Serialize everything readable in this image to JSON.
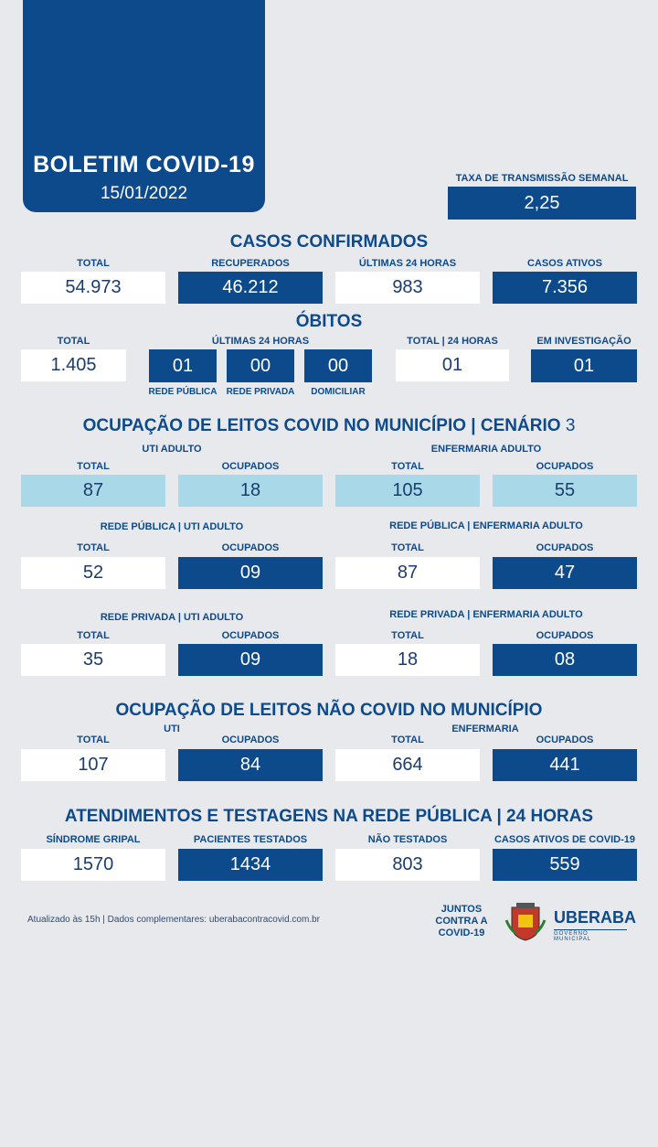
{
  "header": {
    "title": "BOLETIM COVID-19",
    "date": "15/01/2022"
  },
  "transmission": {
    "label": "TAXA DE TRANSMISSÃO SEMANAL",
    "value": "2,25"
  },
  "confirmed": {
    "title": "CASOS CONFIRMADOS",
    "total_label": "TOTAL",
    "total": "54.973",
    "recovered_label": "RECUPERADOS",
    "recovered": "46.212",
    "last24_label": "ÚLTIMAS 24 HORAS",
    "last24": "983",
    "active_label": "CASOS ATIVOS",
    "active": "7.356"
  },
  "deaths": {
    "title": "ÓBITOS",
    "total_label": "TOTAL",
    "total": "1.405",
    "last24_label": "ÚLTIMAS 24 HORAS",
    "public_value": "01",
    "public_label": "REDE PÚBLICA",
    "private_value": "00",
    "private_label": "REDE PRIVADA",
    "home_value": "00",
    "home_label": "DOMICILIAR",
    "total24_label": "TOTAL | 24 HORAS",
    "total24": "01",
    "investigation_label": "EM INVESTIGAÇÃO",
    "investigation": "01"
  },
  "covid_beds": {
    "title": "OCUPAÇÃO DE LEITOS COVID NO MUNICÍPIO | CENÁRIO",
    "scenario": "3",
    "uti_label": "UTI ADULTO",
    "ward_label": "ENFERMARIA ADULTO",
    "total_label": "TOTAL",
    "occupied_label": "OCUPADOS",
    "uti_total": "87",
    "uti_occupied": "18",
    "ward_total": "105",
    "ward_occupied": "55",
    "public_uti_label": "REDE PÚBLICA | UTI ADULTO",
    "public_ward_label": "REDE PÚBLICA | ENFERMARIA ADULTO",
    "public_uti_total": "52",
    "public_uti_occupied": "09",
    "public_ward_total": "87",
    "public_ward_occupied": "47",
    "private_uti_label": "REDE PRIVADA | UTI ADULTO",
    "private_ward_label": "REDE PRIVADA | ENFERMARIA ADULTO",
    "private_uti_total": "35",
    "private_uti_occupied": "09",
    "private_ward_total": "18",
    "private_ward_occupied": "08"
  },
  "noncovid_beds": {
    "title": "OCUPAÇÃO DE LEITOS NÃO COVID NO MUNICÍPIO",
    "uti_label": "UTI",
    "ward_label": "ENFERMARIA",
    "total_label": "TOTAL",
    "occupied_label": "OCUPADOS",
    "uti_total": "107",
    "uti_occupied": "84",
    "ward_total": "664",
    "ward_occupied": "441"
  },
  "testing": {
    "title": "ATENDIMENTOS E TESTAGENS NA REDE PÚBLICA | 24 HORAS",
    "flu_label": "SÍNDROME GRIPAL",
    "flu": "1570",
    "tested_label": "PACIENTES TESTADOS",
    "tested": "1434",
    "not_tested_label": "NÃO TESTADOS",
    "not_tested": "803",
    "active_label": "CASOS ATIVOS DE COVID-19",
    "active": "559"
  },
  "footer": {
    "note": "Atualizado às 15h | Dados complementares: uberabacontracovid.com.br",
    "campaign_line1": "JUNTOS",
    "campaign_line2": "CONTRA A",
    "campaign_line3": "COVID-19",
    "city_logo": "UBERABA",
    "city_logo_sub": "GOVERNO MUNICIPAL"
  },
  "colors": {
    "dark_blue": "#0d4a8c",
    "light_blue": "#a9d8e8",
    "background": "#e8e9ec"
  }
}
